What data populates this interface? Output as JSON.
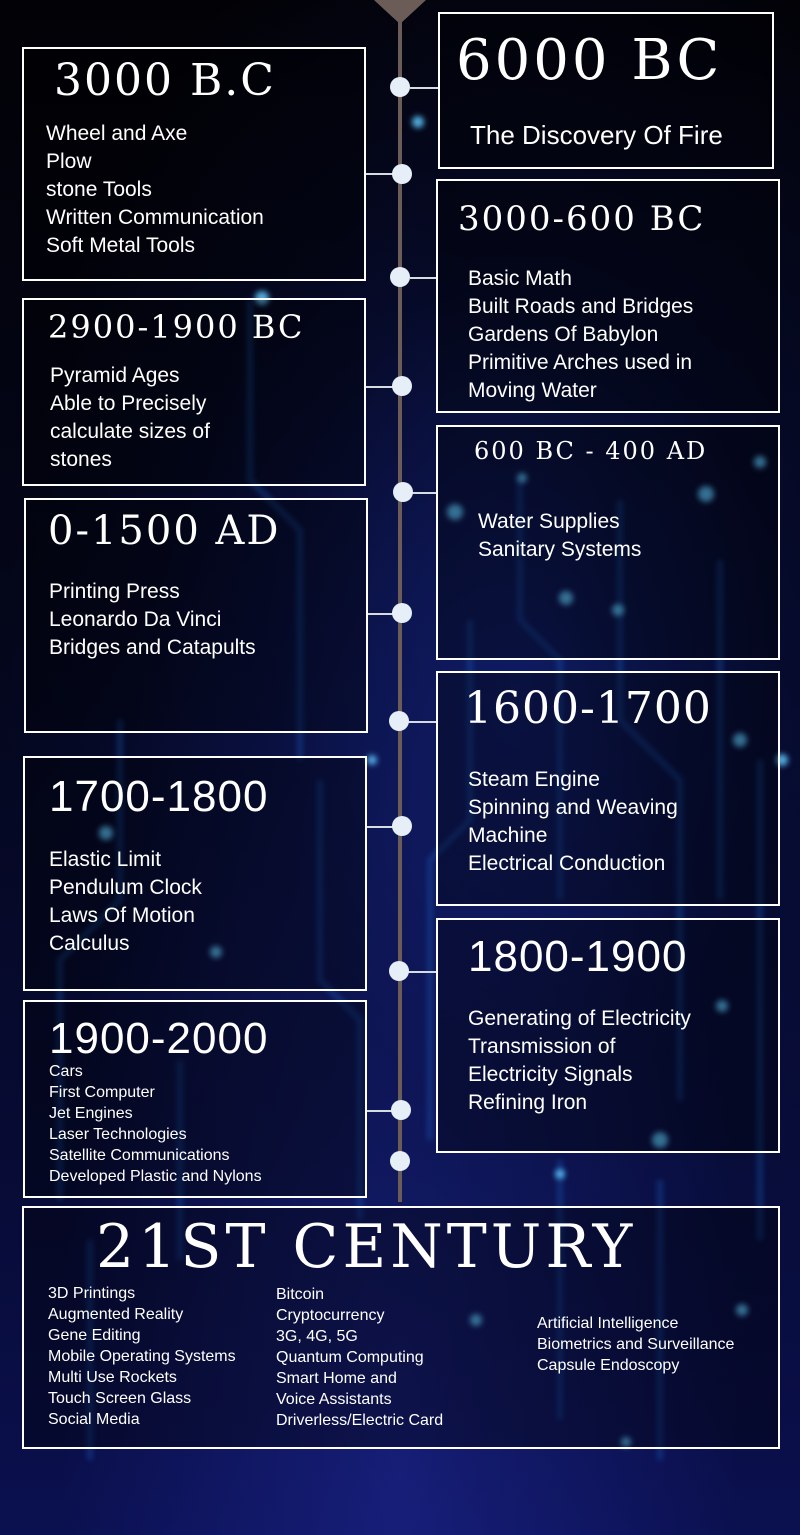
{
  "timeline": [
    {
      "era": "3000 B.C",
      "items": [
        "Wheel and Axe",
        "Plow",
        "stone Tools",
        "Written Communication",
        "Soft Metal Tools"
      ]
    },
    {
      "era": "6000 BC",
      "items": [
        "The Discovery Of Fire"
      ]
    },
    {
      "era": "3000-600 BC",
      "items": [
        "Basic Math",
        "Built Roads and Bridges",
        "Gardens Of Babylon",
        "Primitive Arches used in",
        "Moving Water"
      ]
    },
    {
      "era": "2900-1900 BC",
      "items": [
        "Pyramid Ages",
        "Able to Precisely",
        "calculate sizes of",
        "stones"
      ]
    },
    {
      "era": "600 BC - 400 AD",
      "items": [
        "Water Supplies",
        "Sanitary Systems"
      ]
    },
    {
      "era": "0-1500 AD",
      "items": [
        "Printing Press",
        "Leonardo Da Vinci",
        "Bridges and Catapults"
      ]
    },
    {
      "era": "1600-1700",
      "items": [
        "Steam Engine",
        "Spinning and Weaving",
        "Machine",
        "Electrical Conduction"
      ]
    },
    {
      "era": "1700-1800",
      "items": [
        "Elastic Limit",
        "Pendulum Clock",
        "Laws Of Motion",
        "Calculus"
      ]
    },
    {
      "era": "1800-1900",
      "items": [
        "Generating of Electricity",
        "Transmission of",
        "Electricity Signals",
        "Refining Iron"
      ]
    },
    {
      "era": "1900-2000",
      "items": [
        "Cars",
        "First Computer",
        "Jet Engines",
        "Laser Technologies",
        "Satellite Communications",
        "Developed Plastic and Nylons"
      ]
    }
  ],
  "century": {
    "title": "21ST CENTURY",
    "columns": [
      [
        "3D Printings",
        "Augmented Reality",
        "Gene Editing",
        "Mobile Operating Systems",
        "Multi Use Rockets",
        "Touch Screen Glass",
        "Social Media"
      ],
      [
        "Bitcoin",
        "Cryptocurrency",
        "3G, 4G, 5G",
        "Quantum Computing",
        "Smart Home and",
        "Voice Assistants",
        "Driverless/Electric Card"
      ],
      [
        "Artificial Intelligence",
        "Biometrics and Surveillance",
        "Capsule Endoscopy"
      ]
    ]
  },
  "colors": {
    "line": "#6b5c57",
    "dot": "#e6eef8",
    "border": "#ffffff",
    "glow": "#2fa8ff"
  }
}
